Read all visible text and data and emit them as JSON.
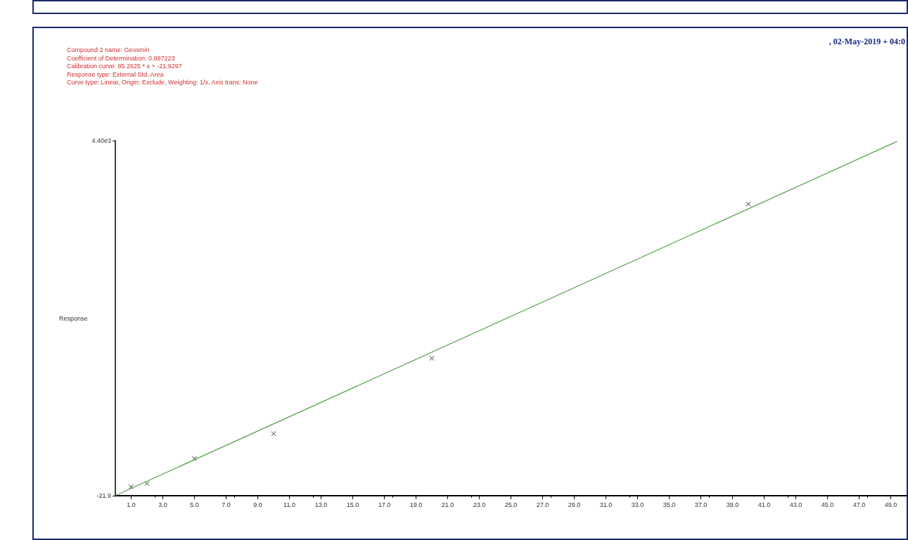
{
  "chart_data": {
    "type": "scatter",
    "annotations": [
      "Compound 2 name: Geosmin",
      "Coefficient of Determination: 0.997223",
      "Calibration curve: 85.2625 * x + -21.9297",
      "Response type: External Std, Area",
      "Curve type: Linear, Origin: Exclude, Weighting: 1/x, Axis trans: None",
      ", 02-May-2019 + 04:0"
    ],
    "ylabel": "Response",
    "series": [
      {
        "color": "#404040",
        "marker": "cross",
        "x": [
          1,
          2,
          5,
          10,
          20,
          40
        ],
        "values": [
          90,
          130,
          440,
          750,
          1690,
          3610
        ]
      },
      {
        "type": "line",
        "color": "#5a9e50",
        "marker": "none",
        "x": [
          0,
          49.4
        ],
        "values": [
          -20,
          4390
        ]
      }
    ],
    "xlim": [
      0,
      50
    ],
    "xticks": [
      {
        "value": 1,
        "label": "1.0"
      },
      {
        "value": 3,
        "label": "3.0"
      },
      {
        "value": 5,
        "label": "5.0"
      },
      {
        "value": 7,
        "label": "7.0"
      },
      {
        "value": 9,
        "label": "9.0"
      },
      {
        "value": 11,
        "label": "11.0"
      },
      {
        "value": 13,
        "label": "13.0"
      },
      {
        "value": 15,
        "label": "15.0"
      },
      {
        "value": 17,
        "label": "17.0"
      },
      {
        "value": 19,
        "label": "19.0"
      },
      {
        "value": 21,
        "label": "21.0"
      },
      {
        "value": 23,
        "label": "23.0"
      },
      {
        "value": 25,
        "label": "25.0"
      },
      {
        "value": 27,
        "label": "27.0"
      },
      {
        "value": 29,
        "label": "29.0"
      },
      {
        "value": 31,
        "label": "31.0"
      },
      {
        "value": 33,
        "label": "33.0"
      },
      {
        "value": 35,
        "label": "35.0"
      },
      {
        "value": 37,
        "label": "37.0"
      },
      {
        "value": 39,
        "label": "39.0"
      },
      {
        "value": 41,
        "label": "41.0"
      },
      {
        "value": 43,
        "label": "43.0"
      },
      {
        "value": 45,
        "label": "45.0"
      },
      {
        "value": 47,
        "label": "47.0"
      },
      {
        "value": 49,
        "label": "49.0"
      }
    ],
    "ylim": [
      -21.9,
      4400
    ],
    "yticks": [
      {
        "value": -21.9,
        "label": "-21.9"
      },
      {
        "value": 4400,
        "label": "4.40e3"
      }
    ],
    "grid": false
  }
}
